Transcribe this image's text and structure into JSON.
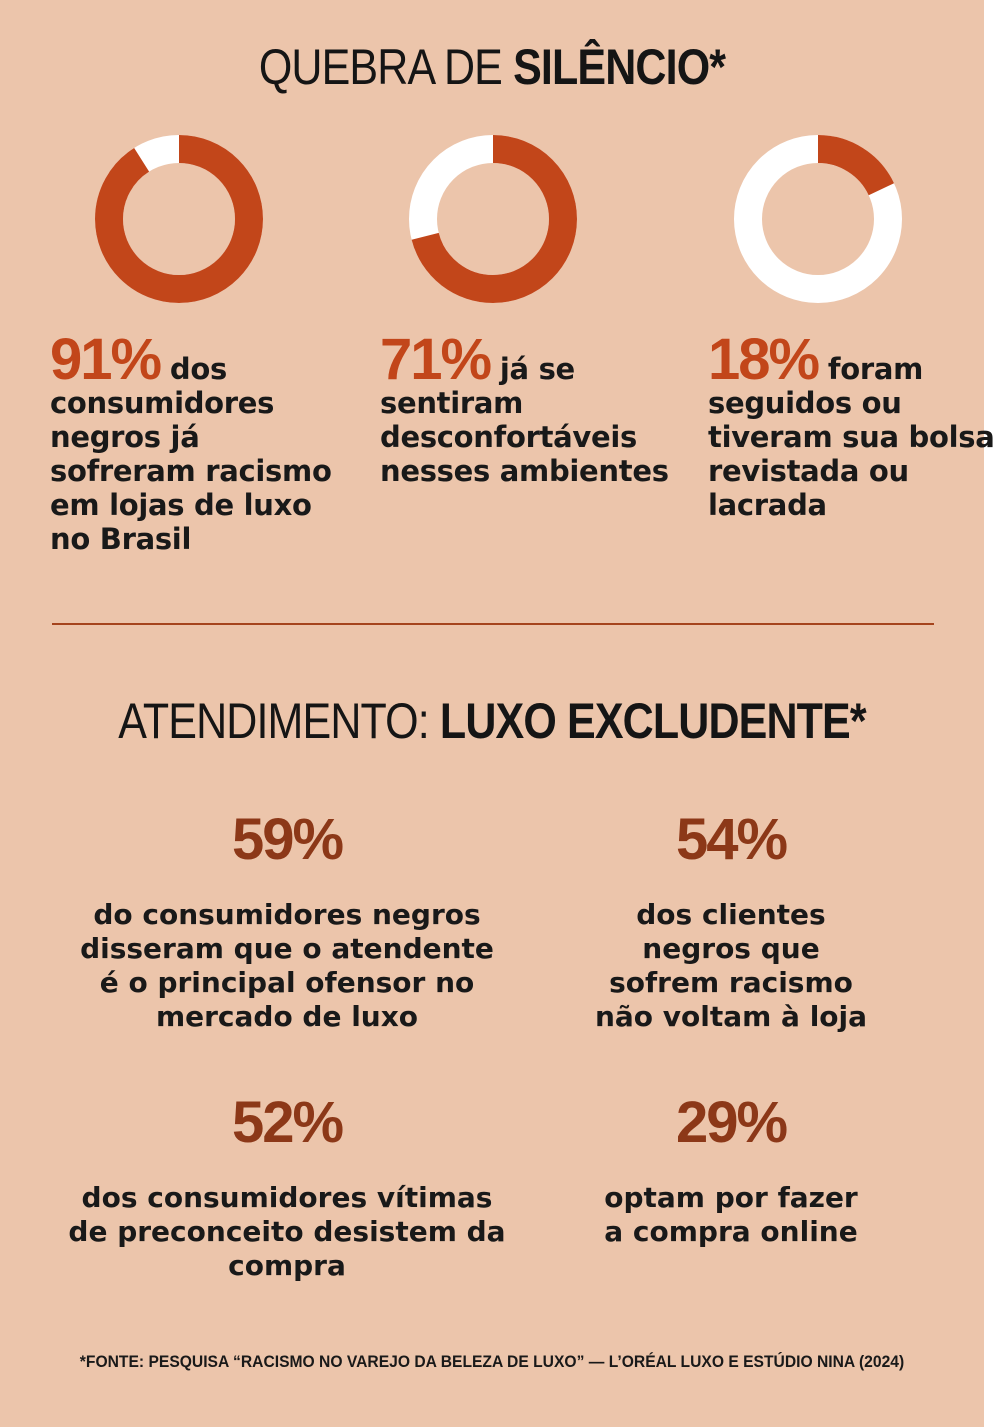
{
  "colors": {
    "background": "#ecc5ab",
    "accent": "#c2461a",
    "dark_accent": "#8c3818",
    "ring_remainder": "#ffffff",
    "text": "#191919"
  },
  "section1": {
    "title_light": "QUEBRA DE ",
    "title_bold": "SILÊNCIO*"
  },
  "chart_data": {
    "type": "pie",
    "variant": "donut",
    "values": [
      91,
      71,
      18
    ],
    "unit": "%",
    "labels": [
      "91% dos consumidores negros já sofreram racismo em lojas de luxo no Brasil",
      "71% já se sentiram desconfortáveis nesses ambientes",
      "18% foram seguidos ou tiveram sua bolsa revistada ou lacrada"
    ]
  },
  "stats": [
    {
      "pct": "91%",
      "text": " dos consumidores negros já sofreram racismo em lojas de luxo no Brasil"
    },
    {
      "pct": "71%",
      "text": " já se sentiram desconfortáveis nesses ambientes"
    },
    {
      "pct": "18%",
      "text": " foram seguidos ou tiveram sua bolsa revistada ou lacrada"
    }
  ],
  "section2": {
    "title_light": "ATENDIMENTO: ",
    "title_bold": "LUXO EXCLUDENTE*"
  },
  "cards": [
    {
      "pct": "59%",
      "text": "do consumidores negros disseram que o atendente é o principal ofensor no mercado de luxo"
    },
    {
      "pct": "54%",
      "text": "dos clientes negros que sofrem racismo não voltam à loja"
    },
    {
      "pct": "52%",
      "text": "dos consumidores vítimas de preconceito desistem da compra"
    },
    {
      "pct": "29%",
      "text": "optam por fazer a compra online"
    }
  ],
  "source": "*FONTE: PESQUISA “RACISMO NO VAREJO DA BELEZA DE LUXO” — L’ORÉAL LUXO E ESTÚDIO NINA (2024)"
}
